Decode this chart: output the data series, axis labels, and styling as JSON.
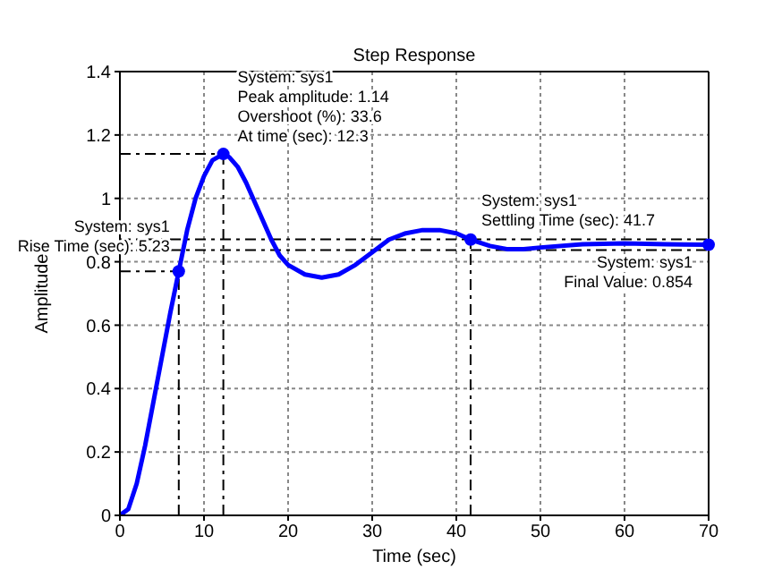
{
  "chart_data": {
    "type": "line",
    "title": "Step Response",
    "xlabel": "Time (sec)",
    "ylabel": "Amplitude",
    "x": [
      0,
      1,
      2,
      3,
      4,
      5,
      6,
      7,
      8,
      9,
      10,
      11,
      12.3,
      13,
      14,
      15,
      16,
      17,
      18,
      19,
      20,
      22,
      24,
      26,
      28,
      30,
      32,
      34,
      36,
      38,
      40,
      41.7,
      44,
      46,
      48,
      50,
      55,
      60,
      65,
      70
    ],
    "series": [
      {
        "color": "#0000ff",
        "values": [
          0,
          0.02,
          0.1,
          0.22,
          0.36,
          0.5,
          0.64,
          0.77,
          0.9,
          1.0,
          1.07,
          1.12,
          1.14,
          1.13,
          1.1,
          1.05,
          0.99,
          0.93,
          0.87,
          0.82,
          0.79,
          0.76,
          0.75,
          0.76,
          0.79,
          0.83,
          0.87,
          0.89,
          0.9,
          0.9,
          0.89,
          0.87,
          0.85,
          0.84,
          0.84,
          0.845,
          0.855,
          0.858,
          0.855,
          0.854
        ]
      }
    ],
    "annotations": [
      {
        "text": "System: sys1\nPeak amplitude: 1.14\nOvershoot (%): 33.6\nAt time (sec): 12.3",
        "x": 12.3,
        "y": 1.14
      },
      {
        "text": "System: sys1\nRise Time (sec): 5.23",
        "x": 7,
        "y": 0.77
      },
      {
        "text": "System: sys1\nSettling Time (sec): 41.7",
        "x": 41.7,
        "y": 0.87
      },
      {
        "text": "System: sys1\nFinal Value: 0.854",
        "x": 70,
        "y": 0.854
      }
    ],
    "ref_lines": [
      {
        "axis": "y",
        "value": 0.871,
        "color": "#000000",
        "line_style": "dashdot"
      },
      {
        "axis": "y",
        "value": 0.837,
        "color": "#000000",
        "line_style": "dashdot"
      },
      {
        "axis": "x",
        "value": 12.3,
        "color": "#000000",
        "line_style": "dashdot"
      },
      {
        "axis": "y",
        "value": 1.14,
        "color": "#000000",
        "line_style": "dashdot"
      },
      {
        "axis": "x",
        "value": 7,
        "color": "#000000",
        "line_style": "dashdot"
      },
      {
        "axis": "y",
        "value": 0.77,
        "color": "#000000",
        "line_style": "dashdot"
      },
      {
        "axis": "x",
        "value": 41.7,
        "color": "#000000",
        "line_style": "dashdot"
      }
    ],
    "xlim": [
      0,
      70
    ],
    "xticks": [
      0,
      10,
      20,
      30,
      40,
      50,
      60,
      70
    ],
    "ylim": [
      0,
      1.4
    ],
    "yticks": [
      0,
      0.2,
      0.4,
      0.6,
      0.8,
      1,
      1.2,
      1.4
    ],
    "grid": true,
    "marker": "none",
    "line_style": "solid",
    "legend": false
  }
}
